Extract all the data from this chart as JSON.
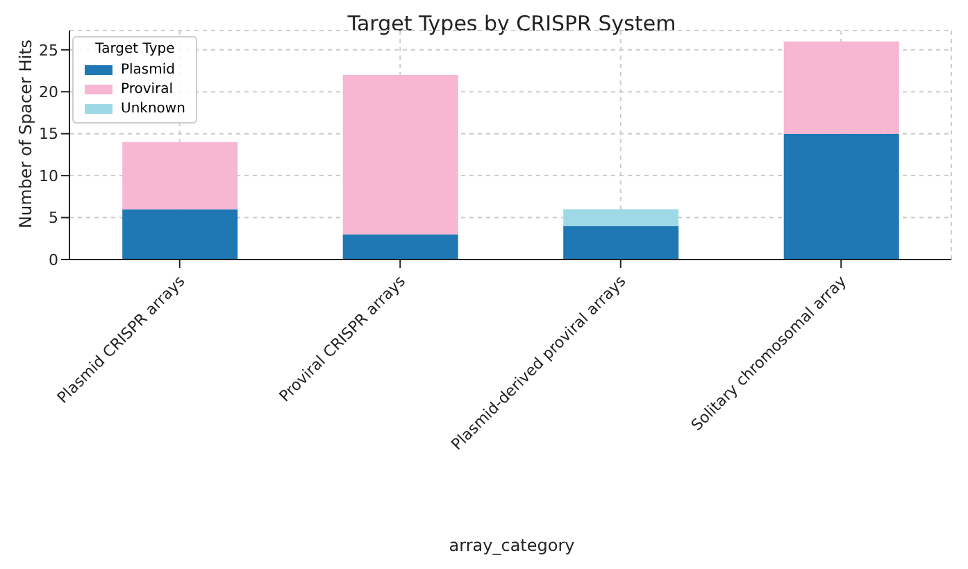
{
  "chart_data": {
    "type": "bar",
    "title": "Target Types by CRISPR System",
    "xlabel": "array_category",
    "ylabel": "Number of Spacer Hits",
    "legend_title": "Target Type",
    "categories": [
      "Plasmid CRISPR arrays",
      "Proviral CRISPR arrays",
      "Plasmid-derived proviral arrays",
      "Solitary chromosomal array"
    ],
    "series": [
      {
        "name": "Plasmid",
        "color": "#1f77b4",
        "values": [
          6,
          3,
          4,
          15
        ]
      },
      {
        "name": "Proviral",
        "color": "#f7b6d2",
        "values": [
          8,
          19,
          0,
          11
        ]
      },
      {
        "name": "Unknown",
        "color": "#9edae5",
        "values": [
          0,
          0,
          2,
          0
        ]
      }
    ],
    "stacked": true,
    "ylim": [
      0,
      27.3
    ],
    "yticks": [
      0,
      5,
      10,
      15,
      20,
      25
    ],
    "grid": true,
    "legend": "top left"
  }
}
